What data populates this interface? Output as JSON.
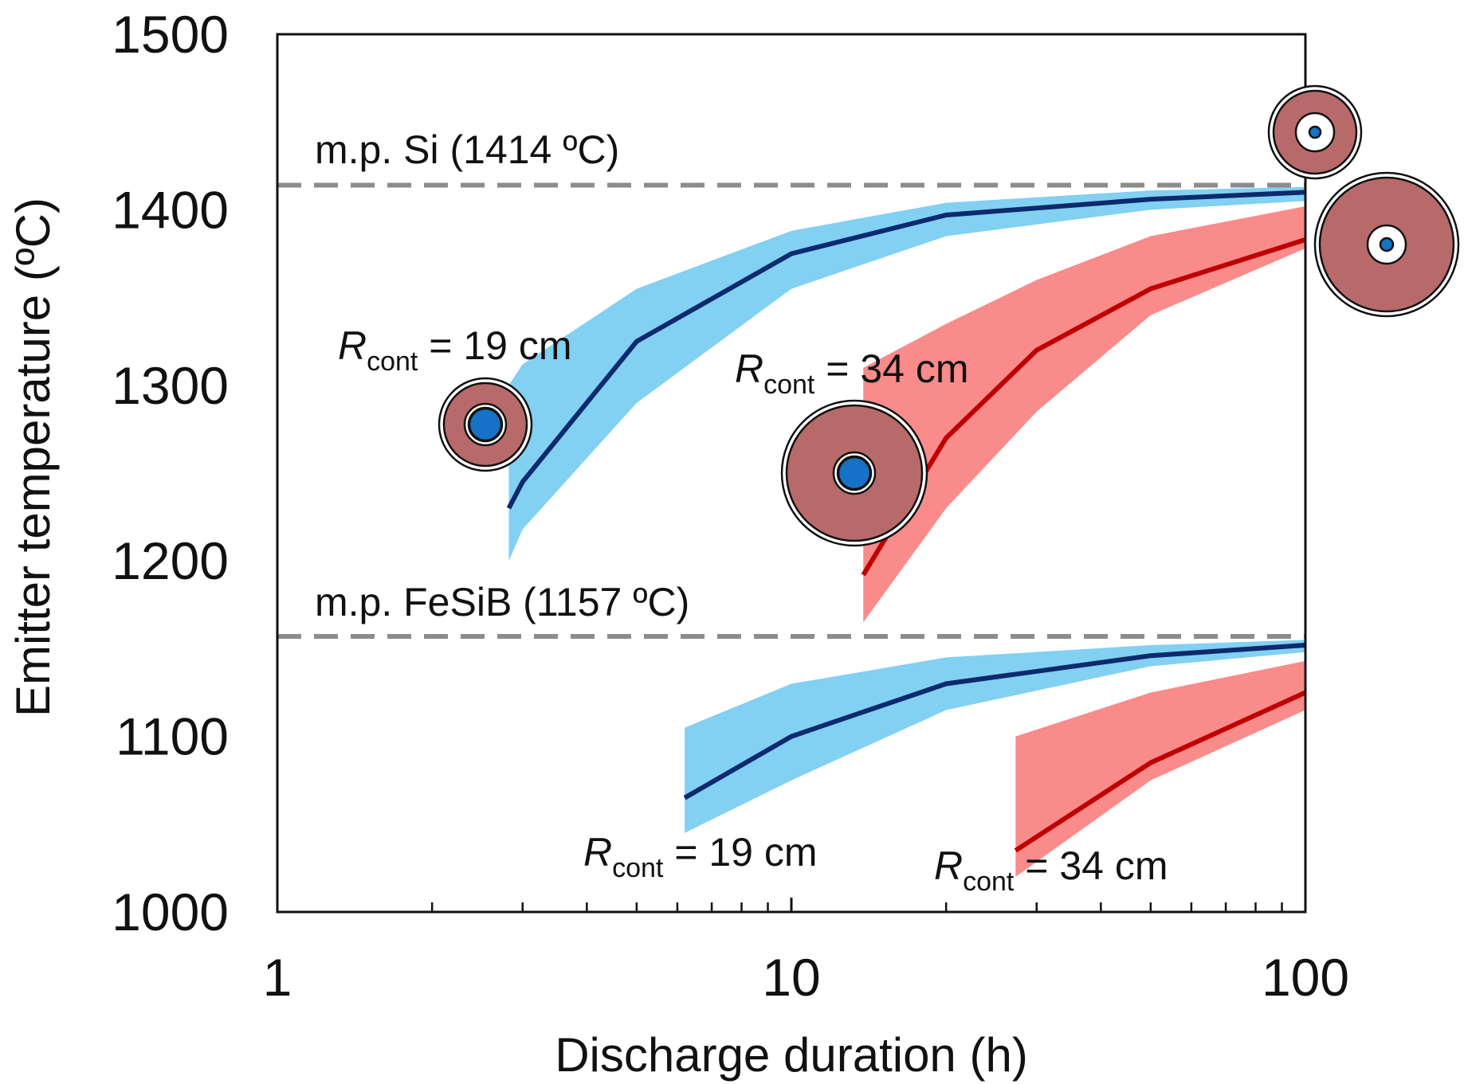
{
  "chart_data": {
    "type": "line",
    "xlabel": "Discharge duration (h)",
    "ylabel": "Emitter temperature (ºC)",
    "xscale": "log",
    "xlim": [
      1,
      100
    ],
    "xticks": [
      1,
      10,
      100
    ],
    "xminorticks": [
      2,
      3,
      4,
      5,
      6,
      7,
      8,
      9,
      20,
      30,
      40,
      50,
      60,
      70,
      80,
      90
    ],
    "ylim": [
      1000,
      1500
    ],
    "yticks": [
      1000,
      1100,
      1200,
      1300,
      1400,
      1500
    ],
    "reference_lines": [
      {
        "value": 1414,
        "label": "m.p. Si (1414 ºC)",
        "color": "#8c8c8c"
      },
      {
        "value": 1157,
        "label": "m.p. FeSiB (1157 ºC)",
        "color": "#8c8c8c"
      }
    ],
    "series": [
      {
        "color": "#0d2a6e",
        "band_color": "#82d0f2",
        "x": [
          2.82,
          3,
          5,
          10,
          20,
          50,
          100
        ],
        "values": [
          1230,
          1245,
          1325,
          1375,
          1397,
          1406,
          1410
        ],
        "upper": [
          1300,
          1312,
          1355,
          1388,
          1404,
          1411,
          1413
        ],
        "lower": [
          1200,
          1218,
          1290,
          1355,
          1385,
          1400,
          1405
        ]
      },
      {
        "color": "#c00000",
        "band_color": "#f98b8a",
        "x": [
          13.8,
          20,
          30,
          50,
          100
        ],
        "values": [
          1192,
          1270,
          1320,
          1355,
          1383
        ],
        "upper": [
          1310,
          1335,
          1360,
          1385,
          1402
        ],
        "lower": [
          1165,
          1230,
          1285,
          1340,
          1378
        ]
      },
      {
        "color": "#0d2a6e",
        "band_color": "#82d0f2",
        "x": [
          6.2,
          10,
          20,
          50,
          100
        ],
        "values": [
          1065,
          1100,
          1130,
          1146,
          1152
        ],
        "upper": [
          1105,
          1130,
          1145,
          1152,
          1155
        ],
        "lower": [
          1045,
          1075,
          1115,
          1140,
          1148
        ]
      },
      {
        "color": "#c00000",
        "band_color": "#f98b8a",
        "x": [
          27.3,
          50,
          100
        ],
        "values": [
          1035,
          1085,
          1125
        ],
        "upper": [
          1100,
          1125,
          1143
        ],
        "lower": [
          1020,
          1075,
          1115
        ]
      }
    ],
    "annotations": [
      {
        "symbol": "R",
        "subscript": "cont",
        "text": " = 19 cm"
      },
      {
        "symbol": "R",
        "subscript": "cont",
        "text": " = 34 cm"
      },
      {
        "symbol": "R",
        "subscript": "cont",
        "text": " = 19 cm"
      },
      {
        "symbol": "R",
        "subscript": "cont",
        "text": " = 34 cm"
      }
    ]
  }
}
